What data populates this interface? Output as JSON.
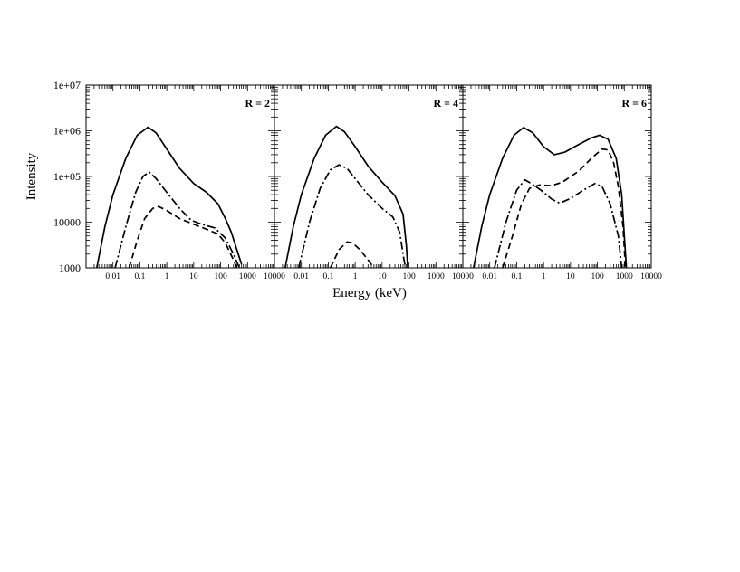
{
  "chart_data": {
    "type": "line",
    "x_scale": "log",
    "y_scale": "log",
    "xlabel": "Energy (keV)",
    "ylabel": "Intensity",
    "xlim": [
      0.001,
      10000
    ],
    "ylim": [
      1000,
      10000000
    ],
    "x_tick_labels": [
      "0.01",
      "0.1",
      "1",
      "10",
      "100",
      "1000",
      "10000"
    ],
    "y_tick_labels": [
      "1000",
      "10000",
      "1e+05",
      "1e+06",
      "1e+07"
    ],
    "line_styles": [
      "solid",
      "dash-dot",
      "dashed"
    ],
    "panels": [
      {
        "label": "R = 2",
        "series": [
          {
            "style": "solid",
            "points": [
              [
                0.0025,
                1000
              ],
              [
                0.005,
                8000
              ],
              [
                0.01,
                40000
              ],
              [
                0.03,
                250000
              ],
              [
                0.08,
                800000
              ],
              [
                0.2,
                1200000
              ],
              [
                0.4,
                900000
              ],
              [
                1,
                400000
              ],
              [
                3,
                150000
              ],
              [
                10,
                70000
              ],
              [
                30,
                45000
              ],
              [
                80,
                25000
              ],
              [
                150,
                12000
              ],
              [
                250,
                6000
              ],
              [
                400,
                2500
              ],
              [
                600,
                1200
              ]
            ]
          },
          {
            "style": "dash-dot",
            "points": [
              [
                0.012,
                1000
              ],
              [
                0.03,
                8000
              ],
              [
                0.07,
                45000
              ],
              [
                0.13,
                100000
              ],
              [
                0.22,
                125000
              ],
              [
                0.4,
                90000
              ],
              [
                1,
                45000
              ],
              [
                3,
                20000
              ],
              [
                8,
                11000
              ],
              [
                20,
                9000
              ],
              [
                60,
                7500
              ],
              [
                150,
                4500
              ],
              [
                300,
                2000
              ],
              [
                500,
                1000
              ]
            ]
          },
          {
            "style": "dashed",
            "points": [
              [
                0.04,
                1000
              ],
              [
                0.08,
                4000
              ],
              [
                0.15,
                12000
              ],
              [
                0.3,
                20000
              ],
              [
                0.5,
                22000
              ],
              [
                1,
                18000
              ],
              [
                3,
                12000
              ],
              [
                10,
                9000
              ],
              [
                30,
                7000
              ],
              [
                80,
                5500
              ],
              [
                150,
                3500
              ],
              [
                300,
                1500
              ],
              [
                400,
                1000
              ]
            ]
          }
        ]
      },
      {
        "label": "R = 4",
        "series": [
          {
            "style": "solid",
            "points": [
              [
                0.0025,
                1000
              ],
              [
                0.005,
                8000
              ],
              [
                0.01,
                40000
              ],
              [
                0.03,
                250000
              ],
              [
                0.08,
                800000
              ],
              [
                0.2,
                1250000
              ],
              [
                0.4,
                950000
              ],
              [
                1,
                450000
              ],
              [
                3,
                170000
              ],
              [
                10,
                75000
              ],
              [
                30,
                38000
              ],
              [
                60,
                15000
              ],
              [
                80,
                3000
              ],
              [
                90,
                1000
              ]
            ]
          },
          {
            "style": "dash-dot",
            "points": [
              [
                0.008,
                1000
              ],
              [
                0.02,
                10000
              ],
              [
                0.05,
                55000
              ],
              [
                0.12,
                140000
              ],
              [
                0.25,
                180000
              ],
              [
                0.5,
                150000
              ],
              [
                1,
                90000
              ],
              [
                3,
                40000
              ],
              [
                10,
                20000
              ],
              [
                25,
                13000
              ],
              [
                45,
                6000
              ],
              [
                65,
                1500
              ],
              [
                75,
                1000
              ]
            ]
          },
          {
            "style": "dashed",
            "points": [
              [
                0.12,
                1000
              ],
              [
                0.25,
                2500
              ],
              [
                0.5,
                3700
              ],
              [
                0.8,
                3500
              ],
              [
                1.5,
                2500
              ],
              [
                3,
                1500
              ],
              [
                5,
                1000
              ]
            ]
          }
        ]
      },
      {
        "label": "R = 6",
        "series": [
          {
            "style": "solid",
            "points": [
              [
                0.0025,
                1000
              ],
              [
                0.005,
                8000
              ],
              [
                0.01,
                40000
              ],
              [
                0.03,
                250000
              ],
              [
                0.08,
                800000
              ],
              [
                0.18,
                1180000
              ],
              [
                0.4,
                900000
              ],
              [
                1,
                450000
              ],
              [
                2.5,
                300000
              ],
              [
                6,
                340000
              ],
              [
                20,
                500000
              ],
              [
                60,
                700000
              ],
              [
                120,
                800000
              ],
              [
                250,
                650000
              ],
              [
                500,
                250000
              ],
              [
                800,
                40000
              ],
              [
                1000,
                5000
              ],
              [
                1200,
                1000
              ]
            ]
          },
          {
            "style": "dash-dot",
            "points": [
              [
                0.015,
                1000
              ],
              [
                0.04,
                10000
              ],
              [
                0.1,
                50000
              ],
              [
                0.2,
                85000
              ],
              [
                0.35,
                70000
              ],
              [
                0.8,
                50000
              ],
              [
                2,
                32000
              ],
              [
                4,
                26000
              ],
              [
                10,
                33000
              ],
              [
                30,
                50000
              ],
              [
                80,
                70000
              ],
              [
                150,
                60000
              ],
              [
                300,
                25000
              ],
              [
                600,
                5000
              ],
              [
                800,
                1000
              ]
            ]
          },
          {
            "style": "dashed",
            "points": [
              [
                0.03,
                1000
              ],
              [
                0.07,
                5000
              ],
              [
                0.15,
                25000
              ],
              [
                0.3,
                55000
              ],
              [
                0.7,
                65000
              ],
              [
                2,
                63000
              ],
              [
                5,
                75000
              ],
              [
                20,
                130000
              ],
              [
                60,
                250000
              ],
              [
                150,
                400000
              ],
              [
                250,
                380000
              ],
              [
                400,
                200000
              ],
              [
                600,
                60000
              ],
              [
                900,
                8000
              ],
              [
                1100,
                1000
              ]
            ]
          }
        ]
      }
    ]
  }
}
